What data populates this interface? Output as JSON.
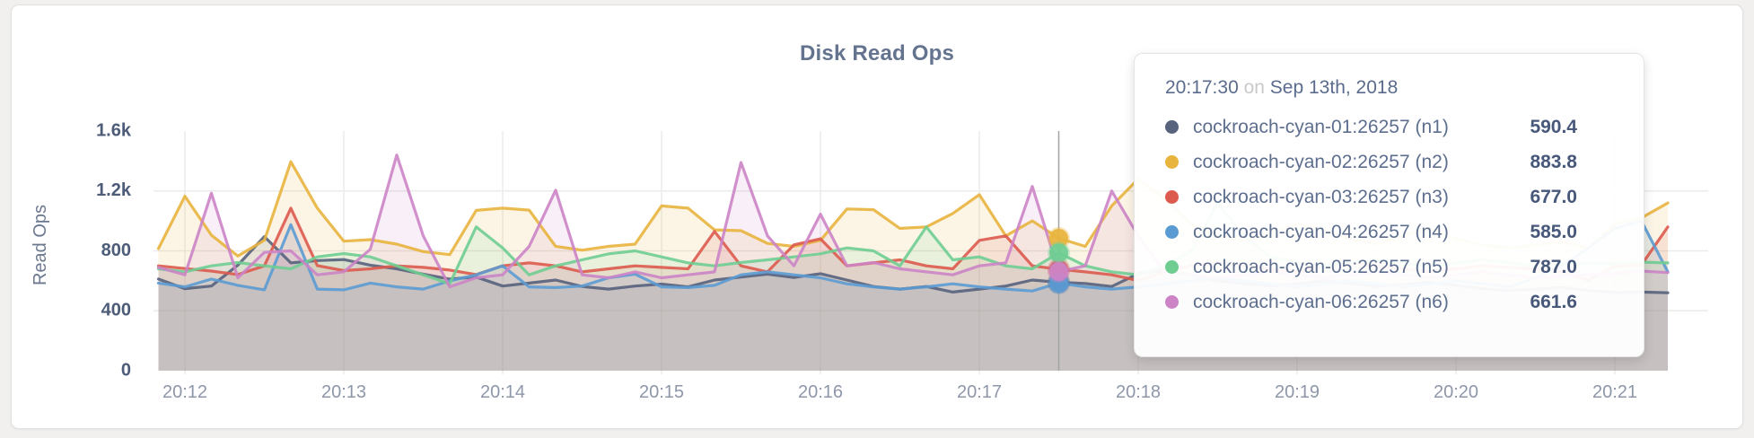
{
  "panel": {
    "title": "Disk Read Ops"
  },
  "colors": {
    "title": "#64748f",
    "grid": "#ebebe9",
    "crosshair": "#a3a3a3",
    "y_tick_text": "#4d5c78",
    "x_tick_text": "#8e97a9"
  },
  "chart_data": {
    "type": "line",
    "title": "Disk Read Ops",
    "xlabel": "",
    "ylabel": "Read Ops",
    "ylim": [
      0,
      1600
    ],
    "grid": true,
    "legend_position": "tooltip",
    "x_range": [
      "20:11:50",
      "20:21:20"
    ],
    "sampling_interval": "10s",
    "x_ticks": [
      "20:12",
      "20:13",
      "20:14",
      "20:15",
      "20:16",
      "20:17",
      "20:18",
      "20:19",
      "20:20",
      "20:21"
    ],
    "y_ticks": [
      {
        "value": 0,
        "label": "0"
      },
      {
        "value": 400,
        "label": "400"
      },
      {
        "value": 800,
        "label": "800"
      },
      {
        "value": 1200,
        "label": "1.2k"
      },
      {
        "value": 1600,
        "label": "1.6k"
      }
    ],
    "series": [
      {
        "name": "cockroach-cyan-01:26257 (n1)",
        "node": "n1",
        "color": "#57627d",
        "values": [
          612,
          548,
          565,
          705,
          895,
          720,
          735,
          742,
          705,
          680,
          645,
          612,
          625,
          565,
          585,
          605,
          562,
          545,
          565,
          578,
          560,
          605,
          625,
          645,
          622,
          648,
          605,
          562,
          545,
          562,
          525,
          545,
          565,
          605,
          590.4,
          582,
          562,
          648,
          672,
          640,
          600,
          582,
          565,
          580,
          600,
          585,
          562,
          575,
          590,
          570,
          548,
          535,
          545,
          555,
          535,
          522,
          525,
          520
        ]
      },
      {
        "name": "cockroach-cyan-02:26257 (n2)",
        "node": "n2",
        "color": "#e8b43e",
        "values": [
          815,
          1165,
          905,
          765,
          870,
          1395,
          1085,
          865,
          875,
          845,
          795,
          775,
          1070,
          1085,
          1072,
          830,
          805,
          830,
          845,
          1100,
          1085,
          940,
          935,
          850,
          830,
          870,
          1080,
          1075,
          950,
          960,
          1050,
          1175,
          900,
          1000,
          883.8,
          830,
          1100,
          1280,
          1150,
          980,
          900,
          870,
          920,
          980,
          940,
          880,
          850,
          900,
          950,
          880,
          840,
          820,
          840,
          860,
          820,
          980,
          1020,
          1120
        ]
      },
      {
        "name": "cockroach-cyan-03:26257 (n3)",
        "node": "n3",
        "color": "#dc5a4e",
        "values": [
          700,
          682,
          665,
          642,
          700,
          1085,
          702,
          668,
          680,
          700,
          690,
          672,
          642,
          700,
          720,
          700,
          660,
          680,
          700,
          690,
          680,
          930,
          700,
          660,
          840,
          880,
          700,
          720,
          740,
          700,
          680,
          870,
          900,
          700,
          677,
          660,
          640,
          602,
          660,
          700,
          722,
          700,
          680,
          660,
          700,
          720,
          700,
          680,
          660,
          680,
          700,
          690,
          680,
          660,
          602,
          700,
          705,
          960
        ]
      },
      {
        "name": "cockroach-cyan-04:26257 (n4)",
        "node": "n4",
        "color": "#5b9bd3",
        "values": [
          585,
          560,
          612,
          570,
          540,
          975,
          545,
          540,
          585,
          560,
          545,
          600,
          640,
          700,
          560,
          555,
          565,
          620,
          645,
          560,
          555,
          570,
          640,
          660,
          640,
          620,
          580,
          560,
          545,
          560,
          580,
          560,
          545,
          532,
          585,
          560,
          545,
          560,
          580,
          600,
          620,
          600,
          580,
          560,
          580,
          600,
          580,
          560,
          580,
          600,
          580,
          560,
          620,
          700,
          820,
          950,
          1000,
          660
        ]
      },
      {
        "name": "cockroach-cyan-05:26257 (n5)",
        "node": "n5",
        "color": "#6fcd92",
        "values": [
          680,
          660,
          700,
          722,
          700,
          680,
          760,
          782,
          760,
          700,
          640,
          580,
          960,
          820,
          640,
          700,
          740,
          780,
          800,
          760,
          720,
          700,
          722,
          740,
          760,
          780,
          820,
          800,
          700,
          960,
          740,
          760,
          700,
          680,
          787,
          700,
          660,
          640,
          700,
          800,
          1120,
          900,
          760,
          720,
          700,
          720,
          740,
          720,
          700,
          720,
          740,
          722,
          700,
          710,
          720,
          715,
          725,
          720
        ]
      },
      {
        "name": "cockroach-cyan-06:26257 (n6)",
        "node": "n6",
        "color": "#cc84c6",
        "values": [
          690,
          640,
          1185,
          620,
          790,
          800,
          640,
          660,
          810,
          1440,
          900,
          560,
          620,
          640,
          830,
          1205,
          640,
          620,
          660,
          620,
          640,
          660,
          1390,
          900,
          700,
          1045,
          700,
          722,
          680,
          660,
          640,
          700,
          720,
          1230,
          661.6,
          700,
          1200,
          900,
          660,
          640,
          620,
          640,
          660,
          640,
          620,
          640,
          660,
          640,
          620,
          640,
          660,
          640,
          620,
          630,
          640,
          650,
          665,
          655
        ]
      }
    ]
  },
  "tooltip": {
    "time": "20:17:30",
    "conjunction": "on",
    "date": "Sep 13th, 2018",
    "hover_index": 34,
    "rows": [
      {
        "name": "cockroach-cyan-01:26257 (n1)",
        "value": "590.4",
        "color": "#57627d"
      },
      {
        "name": "cockroach-cyan-02:26257 (n2)",
        "value": "883.8",
        "color": "#e8b43e"
      },
      {
        "name": "cockroach-cyan-03:26257 (n3)",
        "value": "677.0",
        "color": "#dc5a4e"
      },
      {
        "name": "cockroach-cyan-04:26257 (n4)",
        "value": "585.0",
        "color": "#5b9bd3"
      },
      {
        "name": "cockroach-cyan-05:26257 (n5)",
        "value": "787.0",
        "color": "#6fcd92"
      },
      {
        "name": "cockroach-cyan-06:26257 (n6)",
        "value": "661.6",
        "color": "#cc84c6"
      }
    ]
  }
}
